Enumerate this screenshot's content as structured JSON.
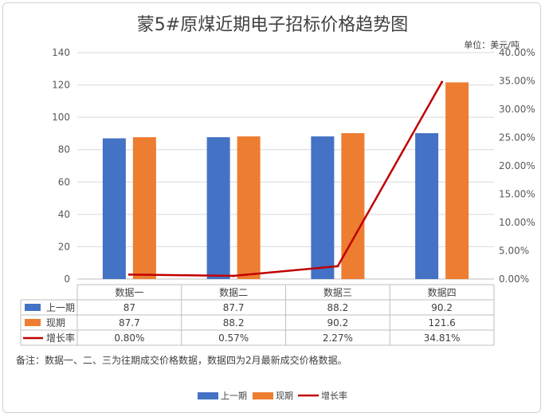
{
  "chart_data": {
    "type": "bar",
    "title": "蒙5#原煤近期电子招标价格趋势图",
    "unit_label": "单位：美元/吨",
    "categories": [
      "数据一",
      "数据二",
      "数据三",
      "数据四"
    ],
    "series": [
      {
        "name": "上一期",
        "kind": "bar",
        "axis": "left",
        "color": "#4472C4",
        "values": [
          87,
          87.7,
          88.2,
          90.2
        ],
        "labels": [
          "87",
          "87.7",
          "88.2",
          "90.2"
        ]
      },
      {
        "name": "现期",
        "kind": "bar",
        "axis": "left",
        "color": "#ED7D31",
        "values": [
          87.7,
          88.2,
          90.2,
          121.6
        ],
        "labels": [
          "87.7",
          "88.2",
          "90.2",
          "121.6"
        ]
      },
      {
        "name": "增长率",
        "kind": "line",
        "axis": "right",
        "color": "#C00000",
        "values": [
          0.8,
          0.57,
          2.27,
          34.81
        ],
        "labels": [
          "0.80%",
          "0.57%",
          "2.27%",
          "34.81%"
        ]
      }
    ],
    "y_left": {
      "min": 0,
      "max": 140,
      "ticks": [
        "0",
        "20",
        "40",
        "60",
        "80",
        "100",
        "120",
        "140"
      ]
    },
    "y_right": {
      "min": 0,
      "max": 40,
      "ticks": [
        "0.00%",
        "5.00%",
        "10.00%",
        "15.00%",
        "20.00%",
        "25.00%",
        "30.00%",
        "35.00%",
        "40.00%"
      ]
    },
    "grid": true,
    "legend_position": "bottom",
    "note": "备注：数据一、二、三为往期成交价格数据，数据四为2月最新成交价格数据。"
  }
}
